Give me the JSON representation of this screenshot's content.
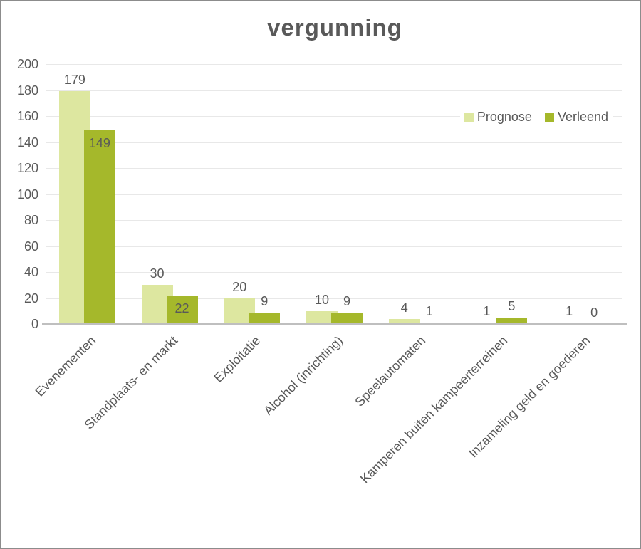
{
  "chart_data": {
    "type": "bar",
    "title": "vergunning",
    "categories": [
      "Evenementen",
      "Standplaats- en markt",
      "Exploitatie",
      "Alcohol (inrichting)",
      "Speelautomaten",
      "Kamperen buiten kampeerterreinen",
      "Inzameling geld en goederen"
    ],
    "series": [
      {
        "name": "Prognose",
        "color": "#dde7a0",
        "values": [
          179,
          30,
          20,
          10,
          4,
          1,
          1
        ]
      },
      {
        "name": "Verleend",
        "color": "#a5b82b",
        "values": [
          149,
          22,
          9,
          9,
          1,
          5,
          0
        ]
      }
    ],
    "xlabel": "",
    "ylabel": "",
    "ylim": [
      0,
      200
    ],
    "ytick_step": 20,
    "grid": true,
    "value_labels": true,
    "legend_position": "top-right-inside"
  },
  "colors": {
    "text": "#595959",
    "gridline": "#e8e8e8",
    "axis_line": "#bfbfbf",
    "frame_border": "#8c8c8c",
    "background": "#ffffff"
  }
}
